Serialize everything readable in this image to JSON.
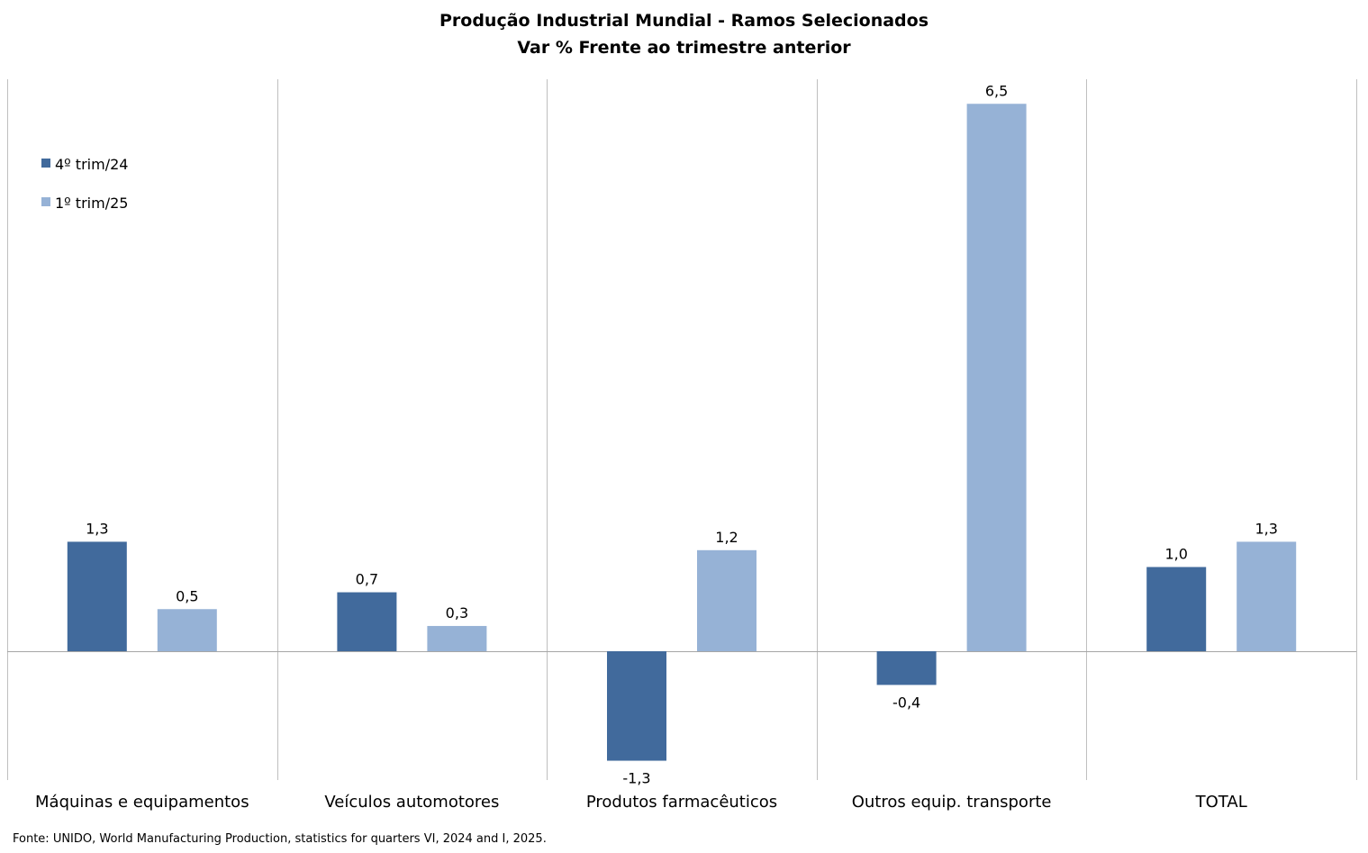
{
  "chart_data": {
    "type": "bar",
    "title": "Produção Industrial Mundial - Ramos Selecionados",
    "subtitle": "Var % Frente ao trimestre anterior",
    "categories": [
      "Máquinas e equipamentos",
      "Veículos automotores",
      "Produtos farmacêuticos",
      "Outros equip. transporte",
      "TOTAL"
    ],
    "series": [
      {
        "name": "4º trim/24",
        "color": "#416A9C",
        "values": [
          1.3,
          0.7,
          -1.3,
          -0.4,
          1.0
        ],
        "labels": [
          "1,3",
          "0,7",
          "-1,3",
          "-0,4",
          "1,0"
        ]
      },
      {
        "name": "1º trim/25",
        "color": "#96B2D6",
        "values": [
          0.5,
          0.3,
          1.2,
          6.5,
          1.3
        ],
        "labels": [
          "0,5",
          "0,3",
          "1,2",
          "6,5",
          "1,3"
        ]
      }
    ],
    "ylim": [
      -1.5,
      6.7
    ],
    "grid": "vertical category separators",
    "legend": "top-left",
    "source": "Fonte: UNIDO, World Manufacturing Production,  statistics for quarters VI, 2024 and I, 2025."
  }
}
